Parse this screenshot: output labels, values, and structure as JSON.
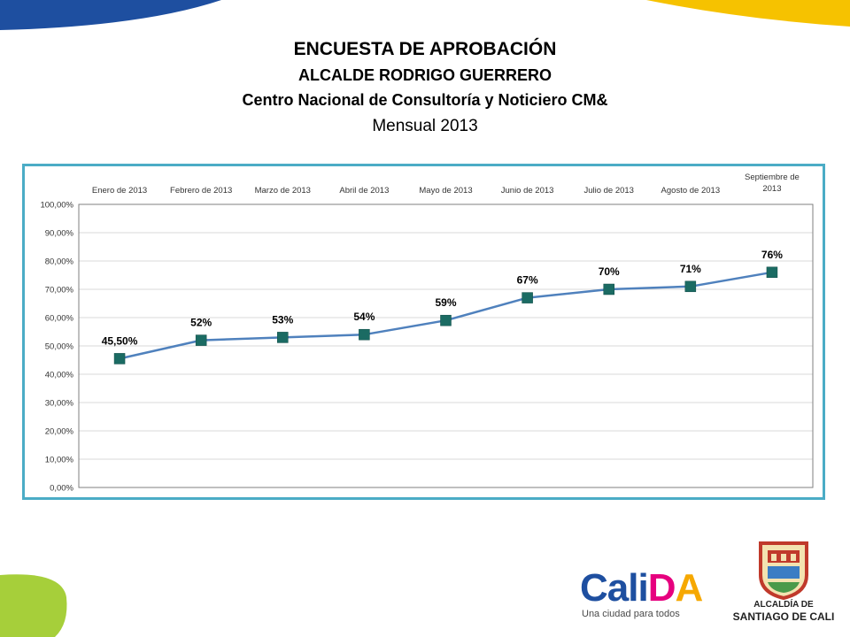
{
  "slide": {
    "title": "ENCUESTA DE APROBACIÓN",
    "subtitle": "ALCALDE RODRIGO GUERRERO",
    "source": "Centro Nacional de Consultoría y Noticiero CM&",
    "period": "Mensual 2013"
  },
  "colors": {
    "frame": "#4bacc6",
    "line": "#4f81bd",
    "marker": "#1b6b63",
    "top_blue": "#1e4fa0",
    "top_yellow": "#f6c200",
    "green": "#a6cf3a"
  },
  "chart_data": {
    "type": "line",
    "categories": [
      "Enero de 2013",
      "Febrero de 2013",
      "Marzo de 2013",
      "Abril de 2013",
      "Mayo de 2013",
      "Junio de 2013",
      "Julio de 2013",
      "Agosto de 2013",
      "Septiembre de 2013"
    ],
    "values": [
      45.5,
      52,
      53,
      54,
      59,
      67,
      70,
      71,
      76
    ],
    "data_labels": [
      "45,50%",
      "52%",
      "53%",
      "54%",
      "59%",
      "67%",
      "70%",
      "71%",
      "76%"
    ],
    "ylim": [
      0,
      100
    ],
    "yticks": [
      0,
      10,
      20,
      30,
      40,
      50,
      60,
      70,
      80,
      90,
      100
    ],
    "ytick_labels": [
      "0,00%",
      "10,00%",
      "20,00%",
      "30,00%",
      "40,00%",
      "50,00%",
      "60,00%",
      "70,00%",
      "80,00%",
      "90,00%",
      "100,00%"
    ],
    "x_axis_position": "top",
    "grid": true,
    "title": "",
    "xlabel": "",
    "ylabel": ""
  },
  "logos": {
    "calida_parts": [
      "Cali",
      "D",
      "A"
    ],
    "calida_tagline": "Una ciudad para todos",
    "alcaldia_line1": "ALCALDÍA DE",
    "alcaldia_line2": "SANTIAGO DE CALI"
  }
}
